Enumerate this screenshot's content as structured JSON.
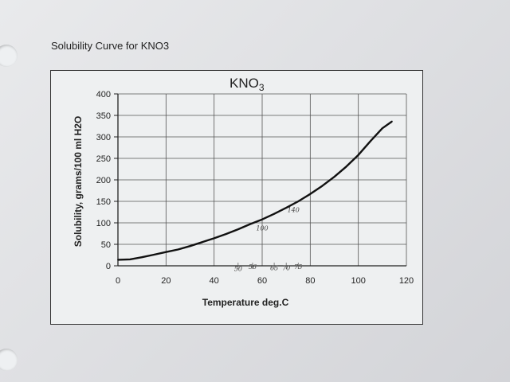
{
  "page": {
    "caption": "Solubility Curve for KNO3"
  },
  "chart_data": {
    "type": "line",
    "title": "KNO",
    "title_subscript": "3",
    "xlabel": "Temperature deg.C",
    "ylabel": "Solubility, grams/100 ml H2O",
    "xlim": [
      0,
      120
    ],
    "ylim": [
      0,
      400
    ],
    "x_ticks": [
      "0",
      "20",
      "40",
      "60",
      "80",
      "100",
      "120"
    ],
    "y_ticks": [
      "0",
      "50",
      "100",
      "150",
      "200",
      "250",
      "300",
      "350",
      "400"
    ],
    "grid": true,
    "series": [
      {
        "color": "#111111",
        "x": [
          0,
          5,
          10,
          15,
          20,
          25,
          30,
          35,
          40,
          45,
          50,
          55,
          60,
          65,
          70,
          75,
          80,
          85,
          90,
          95,
          100,
          105,
          110,
          114
        ],
        "y": [
          14,
          15,
          20,
          26,
          32,
          38,
          46,
          55,
          64,
          74,
          85,
          97,
          108,
          121,
          135,
          150,
          167,
          186,
          207,
          231,
          258,
          290,
          320,
          336
        ]
      }
    ],
    "annotations": [
      "50",
      "56",
      "65",
      "70",
      "75",
      "100",
      "140"
    ]
  }
}
